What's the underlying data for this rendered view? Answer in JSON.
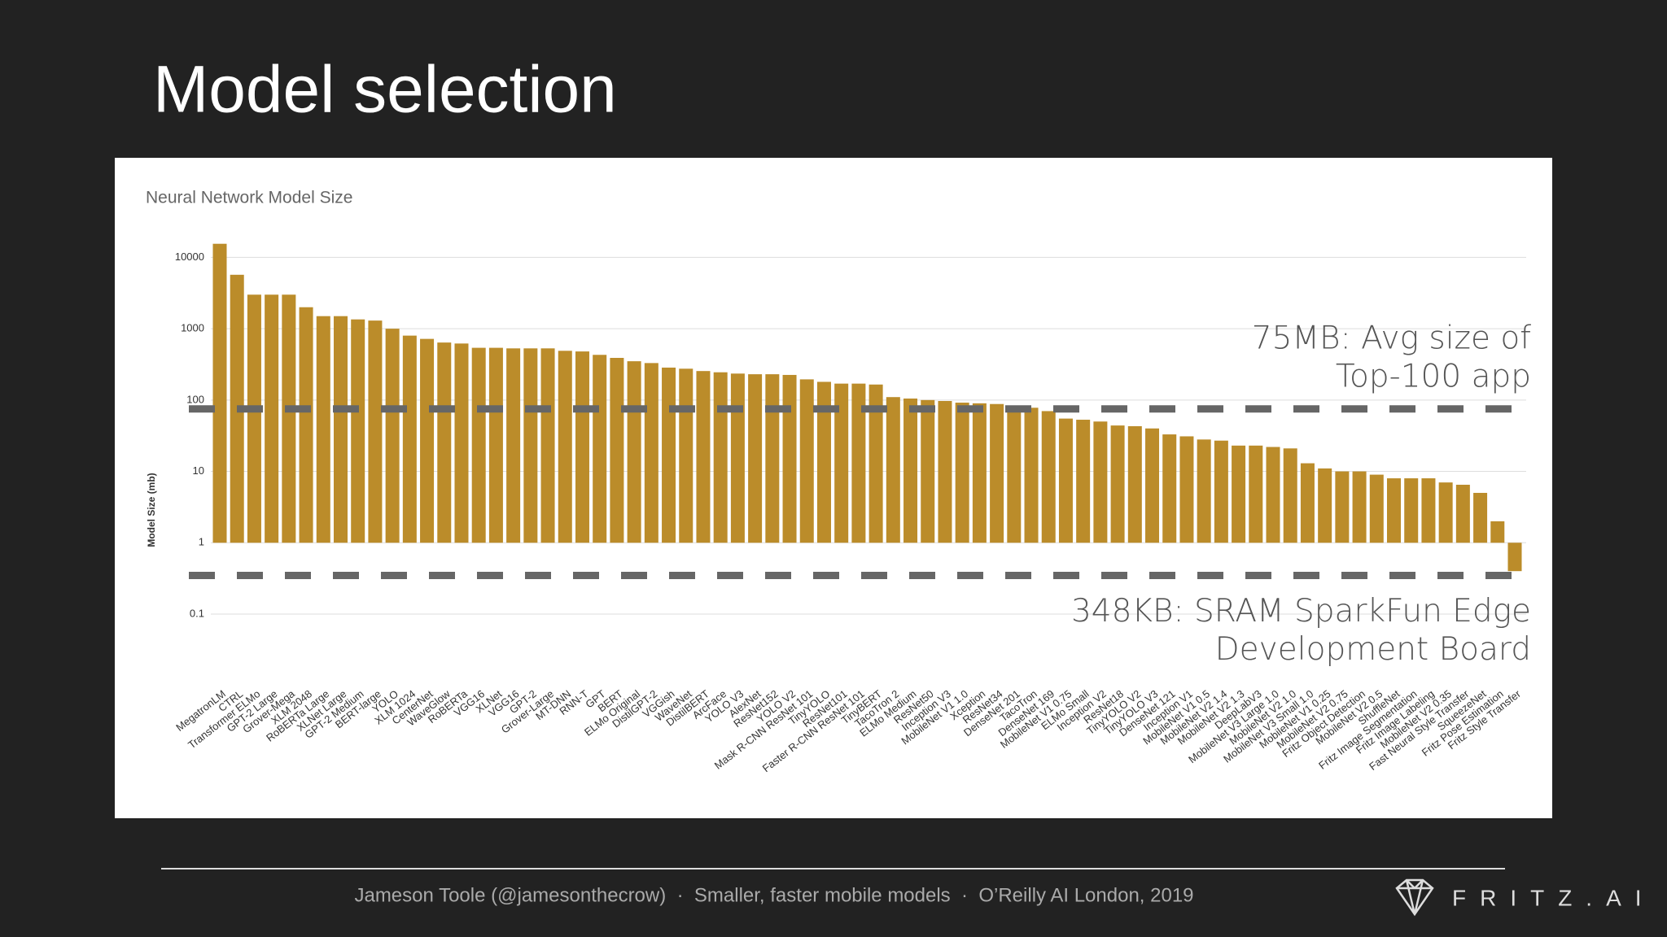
{
  "slide": {
    "title": "Model selection",
    "footer": "Jameson Toole (@jamesonthecrow)  ·  Smaller, faster mobile models  ·  O’Reilly AI London, 2019",
    "logo": "FRITZ.AI"
  },
  "chart_data": {
    "type": "bar",
    "title": "Neural Network Model Size",
    "y_label": "Model Size (mb)",
    "categories": [
      "MegatronLM",
      "CTRL",
      "Transformer ELMo",
      "GPT-2 Large",
      "Grover-Mega",
      "XLM 2048",
      "RoBERTa Large",
      "XLNet Large",
      "GPT-2 Medium",
      "BERT-large",
      "YOLO",
      "XLM 1024",
      "CenterNet",
      "WaveGlow",
      "RoBERTa",
      "VGG16",
      "XLNet",
      "VGG16",
      "GPT-2",
      "Grover-Large",
      "MT-DNN",
      "RNN-T",
      "GPT",
      "BERT",
      "ELMo Original",
      "DistilGPT-2",
      "VGGish",
      "WaveNet",
      "DistilBERT",
      "ArcFace",
      "YOLO V3",
      "AlexNet",
      "ResNet152",
      "YOLO V2",
      "Mask R-CNN ResNet 101",
      "TinyYOLO",
      "ResNet101",
      "Faster R-CNN ResNet 101",
      "TinyBERT",
      "TacoTron 2",
      "ELMo Medium",
      "ResNet50",
      "Inception V3",
      "MobileNet V1 1.0",
      "Xception",
      "ResNet34",
      "DenseNet 201",
      "TacoTron",
      "DenseNet 169",
      "MobileNet V1 0.75",
      "ELMo Small",
      "Inception V2",
      "ResNet18",
      "TinyYOLO V2",
      "TinyYOLO V3",
      "DenseNet 121",
      "Inception V1",
      "MobileNet V1 0.5",
      "MobileNet V2 1.4",
      "MobileNet V2 1.3",
      "DeepLabV3",
      "MobileNet V3 Large 1.0",
      "MobileNet V2 1.0",
      "MobileNet V3 Small 1.0",
      "MobileNet V1 0.25",
      "MobileNet V2 0.75",
      "Fritz Object Detection",
      "MobileNet V2 0.5",
      "ShuffleNet",
      "Fritz Image Segmentation",
      "Fritz Image Labeling",
      "MobileNet V2 0.35",
      "Fast Neural Style Transfer",
      "SqueezeNet",
      "Fritz Pose Estimation",
      "Fritz Style Transfer"
    ],
    "values": [
      15500,
      5700,
      3000,
      3000,
      3000,
      2000,
      1500,
      1500,
      1350,
      1300,
      1000,
      800,
      720,
      640,
      620,
      540,
      540,
      530,
      530,
      530,
      490,
      480,
      430,
      390,
      350,
      330,
      285,
      275,
      255,
      245,
      235,
      230,
      230,
      225,
      195,
      180,
      170,
      170,
      165,
      110,
      105,
      100,
      97,
      92,
      90,
      88,
      82,
      78,
      70,
      55,
      53,
      50,
      44,
      43,
      40,
      33,
      31,
      28,
      27,
      23,
      23,
      22,
      21,
      13,
      11,
      10,
      10,
      9,
      8,
      8,
      8,
      7,
      6.5,
      5,
      2,
      0.4
    ],
    "color": "#bb8c2a",
    "log_scale": true,
    "grid": true,
    "ylim": [
      0.1,
      20000
    ],
    "yticks": [
      0.1,
      1,
      10,
      100,
      1000,
      10000
    ],
    "annotations": [
      {
        "lines": [
          "75MB: Avg size of",
          "Top-100 app"
        ],
        "value": 75
      },
      {
        "lines": [
          "348KB: SRAM SparkFun Edge",
          "Development Board"
        ],
        "value": 0.348
      }
    ]
  }
}
